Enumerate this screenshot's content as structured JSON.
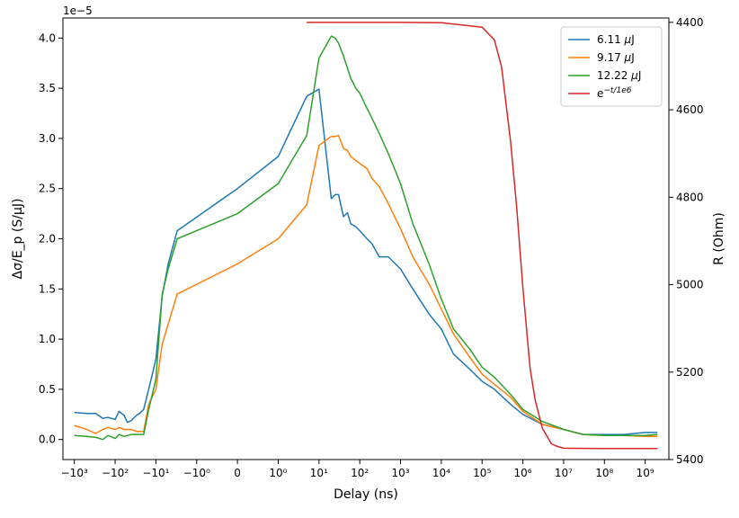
{
  "chart_data": {
    "type": "line",
    "xlabel": "Delay (ns)",
    "ylabel": "Δσ/E_p (S/μJ)",
    "y2label": "R (Ohm)",
    "y_offset_text": "1e−5",
    "x_scale": "symlog",
    "x_ticks": [
      "−10³",
      "−10²",
      "−10¹",
      "−10⁰",
      "0",
      "10⁰",
      "10¹",
      "10²",
      "10³",
      "10⁴",
      "10⁵",
      "10⁶",
      "10⁷",
      "10⁸",
      "10⁹"
    ],
    "y_ticks": [
      "0.0",
      "0.5",
      "1.0",
      "1.5",
      "2.0",
      "2.5",
      "3.0",
      "3.5",
      "4.0"
    ],
    "y2_ticks": [
      "4400",
      "4600",
      "4800",
      "5000",
      "5200",
      "5400"
    ],
    "ylim": [
      -0.2,
      4.2
    ],
    "y2lim": [
      5400,
      4390
    ],
    "legend": "top-right",
    "colors": {
      "blue": "#1f77b4",
      "orange": "#ff7f0e",
      "green": "#2ca02c",
      "red": "#d62728"
    },
    "series": [
      {
        "name": "6.11 μJ",
        "label_base": "6.11 ",
        "label_unit": "μJ",
        "color": "#1f77b4",
        "axis": "left",
        "x": [
          -1000,
          -500,
          -300,
          -200,
          -150,
          -100,
          -80,
          -60,
          -50,
          -40,
          -30,
          -25,
          -20,
          -15,
          -10,
          -7,
          -5,
          -3,
          0,
          1,
          5,
          10,
          20,
          25,
          30,
          40,
          50,
          60,
          80,
          100,
          150,
          200,
          300,
          500,
          1000,
          2000,
          5000,
          10000,
          20000,
          50000,
          100000,
          200000,
          500000,
          1000000,
          3000000,
          10000000,
          30000000,
          100000000,
          300000000,
          1000000000,
          2000000000
        ],
        "y": [
          0.27,
          0.26,
          0.26,
          0.21,
          0.22,
          0.2,
          0.28,
          0.24,
          0.17,
          0.19,
          0.24,
          0.26,
          0.3,
          0.5,
          0.8,
          1.43,
          1.75,
          2.08,
          2.5,
          2.82,
          3.42,
          3.49,
          2.4,
          2.44,
          2.44,
          2.22,
          2.26,
          2.15,
          2.12,
          2.08,
          2.0,
          1.95,
          1.82,
          1.82,
          1.7,
          1.5,
          1.25,
          1.1,
          0.85,
          0.7,
          0.58,
          0.5,
          0.35,
          0.25,
          0.15,
          0.1,
          0.05,
          0.05,
          0.05,
          0.07,
          0.07
        ]
      },
      {
        "name": "9.17 μJ",
        "label_base": "9.17 ",
        "label_unit": "μJ",
        "color": "#ff7f0e",
        "axis": "left",
        "x": [
          -1000,
          -500,
          -300,
          -200,
          -150,
          -100,
          -80,
          -60,
          -50,
          -40,
          -30,
          -25,
          -20,
          -15,
          -10,
          -7,
          -5,
          -3,
          0,
          1,
          5,
          10,
          20,
          25,
          30,
          40,
          50,
          60,
          80,
          100,
          150,
          200,
          300,
          500,
          1000,
          2000,
          5000,
          10000,
          20000,
          50000,
          100000,
          200000,
          500000,
          1000000,
          3000000,
          10000000,
          30000000,
          100000000,
          300000000,
          1000000000,
          2000000000
        ],
        "y": [
          0.14,
          0.1,
          0.06,
          0.1,
          0.12,
          0.1,
          0.12,
          0.1,
          0.1,
          0.1,
          0.08,
          0.08,
          0.08,
          0.35,
          0.5,
          0.95,
          1.15,
          1.45,
          1.75,
          2.0,
          2.34,
          2.93,
          3.02,
          3.02,
          3.03,
          2.9,
          2.88,
          2.82,
          2.78,
          2.75,
          2.7,
          2.6,
          2.52,
          2.35,
          2.1,
          1.82,
          1.55,
          1.3,
          1.05,
          0.82,
          0.65,
          0.55,
          0.42,
          0.28,
          0.15,
          0.1,
          0.05,
          0.04,
          0.04,
          0.03,
          0.03
        ]
      },
      {
        "name": "12.22 μJ",
        "label_base": "12.22 ",
        "label_unit": "μJ",
        "color": "#2ca02c",
        "axis": "left",
        "x": [
          -1000,
          -500,
          -300,
          -200,
          -150,
          -100,
          -80,
          -60,
          -50,
          -40,
          -30,
          -25,
          -20,
          -15,
          -10,
          -7,
          -5,
          -3,
          0,
          1,
          5,
          10,
          20,
          25,
          30,
          40,
          50,
          60,
          80,
          100,
          150,
          200,
          300,
          500,
          1000,
          2000,
          5000,
          10000,
          20000,
          50000,
          100000,
          200000,
          500000,
          1000000,
          3000000,
          10000000,
          30000000,
          100000000,
          300000000,
          1000000000,
          2000000000
        ],
        "y": [
          0.04,
          0.03,
          0.02,
          0.0,
          0.04,
          0.01,
          0.05,
          0.03,
          0.04,
          0.05,
          0.05,
          0.05,
          0.05,
          0.3,
          0.6,
          1.45,
          1.7,
          2.0,
          2.25,
          2.55,
          3.03,
          3.8,
          4.02,
          4.0,
          3.95,
          3.82,
          3.7,
          3.6,
          3.5,
          3.45,
          3.3,
          3.2,
          3.05,
          2.85,
          2.55,
          2.15,
          1.75,
          1.4,
          1.1,
          0.9,
          0.72,
          0.62,
          0.45,
          0.3,
          0.18,
          0.1,
          0.05,
          0.04,
          0.04,
          0.04,
          0.05
        ]
      },
      {
        "name": "e^{−t/1e6}",
        "label_base": "e",
        "label_sup": "−t/1e6",
        "color": "#d62728",
        "axis": "right",
        "x": [
          5,
          10,
          100,
          1000,
          10000,
          100000,
          200000,
          300000,
          500000,
          700000,
          1000000,
          1500000,
          2000000,
          3000000,
          5000000,
          7000000,
          10000000,
          100000000,
          1000000000,
          2000000000
        ],
        "y": [
          4400,
          4400,
          4400,
          4400,
          4401,
          4411,
          4440,
          4502,
          4672,
          4820,
          5007,
          5191,
          5263,
          5328,
          5364,
          5370,
          5374,
          5375,
          5375,
          5375
        ]
      }
    ]
  }
}
